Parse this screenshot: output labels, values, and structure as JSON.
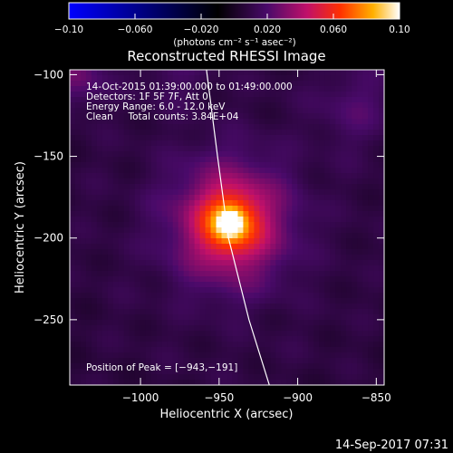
{
  "chart_data": {
    "type": "heatmap",
    "title": "Reconstructed RHESSI Image",
    "xlabel": "Heliocentric X (arcsec)",
    "ylabel": "Heliocentric Y (arcsec)",
    "xlim": [
      -1045,
      -845
    ],
    "ylim": [
      -290,
      -97
    ],
    "x_ticks": [
      -1000,
      -950,
      -900,
      -850
    ],
    "y_ticks": [
      -250,
      -200,
      -150,
      -100
    ],
    "x_tick_labels": [
      "−1000",
      "−950",
      "−900",
      "−850"
    ],
    "y_tick_labels": [
      "−250",
      "−200",
      "−150",
      "−100"
    ],
    "colorbar": {
      "range": [
        -0.1,
        0.1
      ],
      "ticks": [
        -0.1,
        -0.06,
        -0.02,
        0.02,
        0.06,
        0.1
      ],
      "tick_labels": [
        "−0.10",
        "−0.060",
        "−0.020",
        "0.020",
        "0.060",
        "0.10"
      ],
      "units_text": "(photons cm⁻² s⁻¹ asec⁻²)",
      "colormap": [
        "#0000ff",
        "#000000",
        "#3a0a55",
        "#b0106a",
        "#ff3000",
        "#ffaa00",
        "#ffffff"
      ]
    },
    "source": {
      "x": -943,
      "y": -191,
      "peak_value": 0.1
    },
    "limb_line": {
      "points": [
        [
          -958,
          -97
        ],
        [
          -951,
          -150
        ],
        [
          -944,
          -200
        ],
        [
          -931,
          -250
        ],
        [
          -918,
          -290
        ]
      ]
    },
    "annotations": [
      "14-Oct-2015 01:39:00.000 to 01:49:00.000",
      "Detectors: 1F 5F 7F, Att 0",
      "Energy Range: 6.0 - 12.0 keV",
      "Clean     Total counts: 3.84E+04"
    ],
    "peak_label": "Position of Peak = [−943,−191]"
  },
  "footer": {
    "timestamp": "14-Sep-2017 07:31"
  }
}
